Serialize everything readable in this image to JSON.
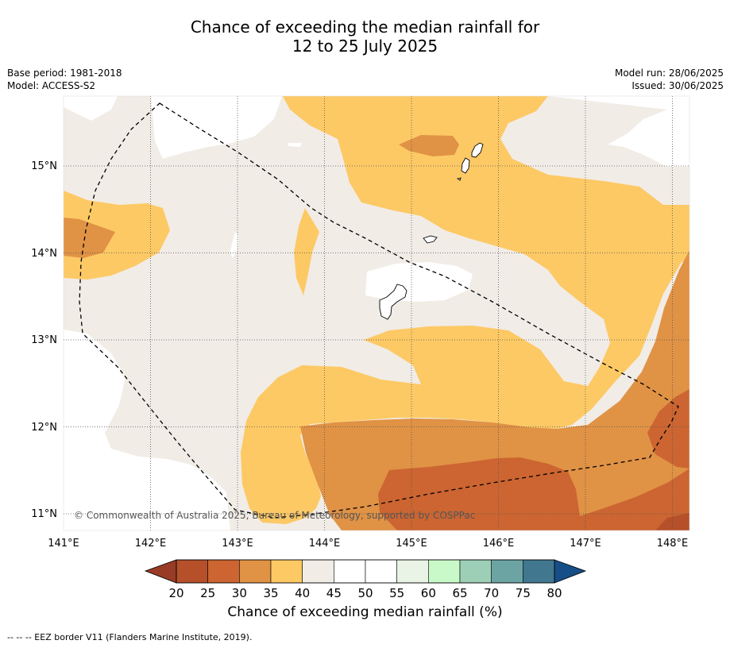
{
  "title": {
    "line1": "Chance of exceeding the median rainfall for",
    "line2": "12 to 25 July 2025"
  },
  "meta": {
    "base_period": "Base period: 1981-2018",
    "model": "Model: ACCESS-S2",
    "model_run": "Model run: 28/06/2025",
    "issued": "Issued: 30/06/2025"
  },
  "map": {
    "lon_ticks": [
      "141°E",
      "142°E",
      "143°E",
      "144°E",
      "145°E",
      "146°E",
      "147°E",
      "148°E"
    ],
    "lat_ticks": [
      "15°N",
      "14°N",
      "13°N",
      "12°N",
      "11°N"
    ],
    "copyright": "© Commonwealth of Australia 2025, Bureau of Meteorology, supported by COSPPac"
  },
  "colorbar": {
    "ticks": [
      "20",
      "25",
      "30",
      "35",
      "40",
      "45",
      "50",
      "55",
      "60",
      "65",
      "70",
      "75",
      "80"
    ],
    "colors": [
      "#b5502a",
      "#cc6531",
      "#e09245",
      "#fdc965",
      "#f1ece6",
      "#ffffff",
      "#ffffff",
      "#e9f4e7",
      "#c9f9c9",
      "#9ccfb6",
      "#6ca4a3",
      "#41778f"
    ],
    "under_color": "#983c26",
    "over_color": "#174e87",
    "label": "Chance of exceeding median rainfall (%)"
  },
  "footnote": "--  --  -- EEZ border V11 (Flanders Marine Institute, 2019)."
}
